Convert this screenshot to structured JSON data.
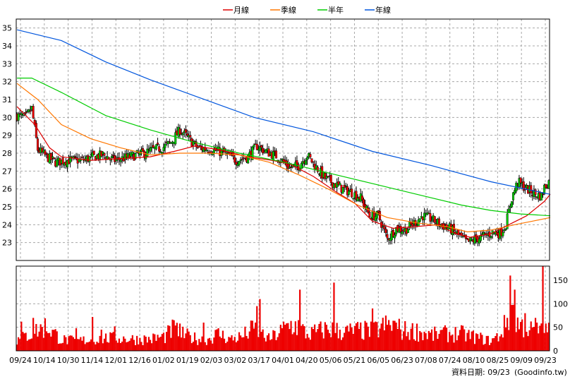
{
  "chart_data": [
    {
      "type": "candlestick-line",
      "title": "",
      "legend": {
        "placement": "top-center",
        "entries": [
          {
            "name": "月線",
            "color": "#dd0000"
          },
          {
            "name": "季線",
            "color": "#ff7700"
          },
          {
            "name": "半年",
            "color": "#00cc00"
          },
          {
            "name": "年線",
            "color": "#0055dd"
          }
        ]
      },
      "ylim": [
        22,
        35.5
      ],
      "y_ticks": [
        23,
        24,
        25,
        26,
        27,
        28,
        29,
        30,
        31,
        32,
        33,
        34,
        35
      ],
      "x_tick_labels": [
        "09/24",
        "10/14",
        "10/30",
        "11/14",
        "12/01",
        "12/16",
        "01/02",
        "01/19",
        "02/03",
        "03/02",
        "03/17",
        "04/01",
        "04/20",
        "05/06",
        "05/21",
        "06/05",
        "06/23",
        "07/08",
        "07/24",
        "08/10",
        "08/25",
        "09/09",
        "09/23"
      ],
      "grid": true,
      "up_color": "#00cc00",
      "down_color": "#ee0000",
      "price_path": [
        [
          0,
          30.1
        ],
        [
          6,
          30.0
        ],
        [
          10,
          30.5
        ],
        [
          14,
          28.2
        ],
        [
          20,
          27.8
        ],
        [
          26,
          27.5
        ],
        [
          34,
          27.6
        ],
        [
          44,
          27.6
        ],
        [
          52,
          27.8
        ],
        [
          58,
          27.9
        ],
        [
          66,
          27.6
        ],
        [
          76,
          27.8
        ],
        [
          86,
          28.0
        ],
        [
          92,
          28.2
        ],
        [
          98,
          28.3
        ],
        [
          104,
          28.6
        ],
        [
          110,
          29.3
        ],
        [
          116,
          28.8
        ],
        [
          122,
          28.3
        ],
        [
          132,
          28.2
        ],
        [
          140,
          28.0
        ],
        [
          148,
          27.6
        ],
        [
          156,
          27.8
        ],
        [
          162,
          28.4
        ],
        [
          168,
          28.1
        ],
        [
          176,
          27.8
        ],
        [
          184,
          27.2
        ],
        [
          190,
          27.3
        ],
        [
          196,
          27.9
        ],
        [
          202,
          27.2
        ],
        [
          208,
          26.6
        ],
        [
          214,
          26.3
        ],
        [
          220,
          26.0
        ],
        [
          226,
          25.8
        ],
        [
          232,
          25.5
        ],
        [
          238,
          24.5
        ],
        [
          244,
          24.5
        ],
        [
          250,
          23.2
        ],
        [
          256,
          23.8
        ],
        [
          262,
          23.7
        ],
        [
          268,
          24.1
        ],
        [
          274,
          24.5
        ],
        [
          280,
          24.3
        ],
        [
          286,
          24.0
        ],
        [
          292,
          23.8
        ],
        [
          298,
          23.4
        ],
        [
          304,
          23.0
        ],
        [
          310,
          23.2
        ],
        [
          316,
          23.4
        ],
        [
          322,
          23.6
        ],
        [
          326,
          23.5
        ],
        [
          330,
          24.0
        ],
        [
          334,
          25.5
        ],
        [
          338,
          26.4
        ],
        [
          344,
          26.0
        ],
        [
          350,
          25.7
        ],
        [
          354,
          25.6
        ],
        [
          356,
          26.1
        ],
        [
          360,
          26.5
        ]
      ],
      "moving_averages": [
        {
          "name": "月線",
          "points": [
            [
              0,
              30.6
            ],
            [
              12,
              29.6
            ],
            [
              22,
              28.3
            ],
            [
              30,
              27.8
            ],
            [
              50,
              27.6
            ],
            [
              70,
              27.7
            ],
            [
              90,
              27.8
            ],
            [
              106,
              28.1
            ],
            [
              120,
              28.4
            ],
            [
              136,
              28.2
            ],
            [
              156,
              27.8
            ],
            [
              172,
              27.6
            ],
            [
              184,
              27.4
            ],
            [
              200,
              26.7
            ],
            [
              216,
              25.8
            ],
            [
              228,
              25.2
            ],
            [
              240,
              24.2
            ],
            [
              254,
              23.8
            ],
            [
              270,
              23.9
            ],
            [
              284,
              24.0
            ],
            [
              296,
              23.5
            ],
            [
              306,
              23.3
            ],
            [
              320,
              23.5
            ],
            [
              332,
              24.0
            ],
            [
              344,
              24.5
            ],
            [
              356,
              25.3
            ],
            [
              360,
              25.7
            ]
          ]
        },
        {
          "name": "季線",
          "points": [
            [
              0,
              31.9
            ],
            [
              14,
              31.0
            ],
            [
              30,
              29.6
            ],
            [
              50,
              28.8
            ],
            [
              70,
              28.3
            ],
            [
              90,
              27.9
            ],
            [
              110,
              28.0
            ],
            [
              130,
              28.0
            ],
            [
              150,
              27.9
            ],
            [
              170,
              27.5
            ],
            [
              190,
              26.8
            ],
            [
              210,
              26.0
            ],
            [
              230,
              25.1
            ],
            [
              250,
              24.4
            ],
            [
              270,
              24.1
            ],
            [
              290,
              23.9
            ],
            [
              304,
              23.6
            ],
            [
              320,
              23.7
            ],
            [
              336,
              24.0
            ],
            [
              348,
              24.2
            ],
            [
              360,
              24.4
            ]
          ]
        },
        {
          "name": "半年",
          "points": [
            [
              0,
              32.2
            ],
            [
              10,
              32.2
            ],
            [
              30,
              31.4
            ],
            [
              60,
              30.1
            ],
            [
              90,
              29.3
            ],
            [
              120,
              28.6
            ],
            [
              150,
              28.0
            ],
            [
              180,
              27.5
            ],
            [
              210,
              26.9
            ],
            [
              240,
              26.3
            ],
            [
              270,
              25.7
            ],
            [
              300,
              25.1
            ],
            [
              320,
              24.8
            ],
            [
              340,
              24.6
            ],
            [
              360,
              24.5
            ]
          ]
        },
        {
          "name": "年線",
          "points": [
            [
              0,
              34.9
            ],
            [
              30,
              34.3
            ],
            [
              60,
              33.1
            ],
            [
              90,
              32.1
            ],
            [
              120,
              31.2
            ],
            [
              160,
              30.0
            ],
            [
              200,
              29.2
            ],
            [
              240,
              28.1
            ],
            [
              280,
              27.3
            ],
            [
              320,
              26.4
            ],
            [
              360,
              25.7
            ]
          ]
        }
      ]
    },
    {
      "type": "bar",
      "series_color": "#ee0000",
      "ylim": [
        0,
        180
      ],
      "y_ticks": [
        0,
        50,
        100,
        150
      ],
      "volume_profile": [
        [
          0,
          22
        ],
        [
          10,
          40
        ],
        [
          20,
          55
        ],
        [
          30,
          25
        ],
        [
          40,
          22
        ],
        [
          50,
          25
        ],
        [
          60,
          28
        ],
        [
          70,
          28
        ],
        [
          80,
          26
        ],
        [
          90,
          26
        ],
        [
          100,
          32
        ],
        [
          106,
          50
        ],
        [
          110,
          38
        ],
        [
          120,
          28
        ],
        [
          128,
          25
        ],
        [
          136,
          38
        ],
        [
          144,
          26
        ],
        [
          152,
          32
        ],
        [
          160,
          50
        ],
        [
          170,
          26
        ],
        [
          176,
          38
        ],
        [
          184,
          58
        ],
        [
          190,
          55
        ],
        [
          196,
          36
        ],
        [
          200,
          40
        ],
        [
          210,
          50
        ],
        [
          216,
          45
        ],
        [
          222,
          42
        ],
        [
          230,
          45
        ],
        [
          240,
          44
        ],
        [
          248,
          55
        ],
        [
          254,
          58
        ],
        [
          260,
          45
        ],
        [
          270,
          44
        ],
        [
          280,
          35
        ],
        [
          290,
          38
        ],
        [
          300,
          38
        ],
        [
          310,
          30
        ],
        [
          320,
          22
        ],
        [
          326,
          35
        ],
        [
          330,
          60
        ],
        [
          334,
          100
        ],
        [
          338,
          60
        ],
        [
          344,
          52
        ],
        [
          350,
          40
        ],
        [
          356,
          45
        ],
        [
          360,
          50
        ]
      ],
      "volume_spikes": [
        [
          3,
          62
        ],
        [
          11,
          70
        ],
        [
          40,
          48
        ],
        [
          51,
          72
        ],
        [
          57,
          45
        ],
        [
          66,
          52
        ],
        [
          106,
          65
        ],
        [
          110,
          58
        ],
        [
          126,
          60
        ],
        [
          162,
          95
        ],
        [
          164,
          110
        ],
        [
          191,
          130
        ],
        [
          214,
          145
        ],
        [
          236,
          60
        ],
        [
          240,
          90
        ],
        [
          256,
          60
        ],
        [
          288,
          50
        ],
        [
          333,
          160
        ],
        [
          336,
          130
        ],
        [
          343,
          80
        ],
        [
          350,
          70
        ],
        [
          351,
          60
        ],
        [
          355,
          180
        ],
        [
          357,
          58
        ]
      ]
    }
  ],
  "footer": {
    "date_label": "資料日期: 09/23",
    "source_label": "(Goodinfo.tw)"
  }
}
